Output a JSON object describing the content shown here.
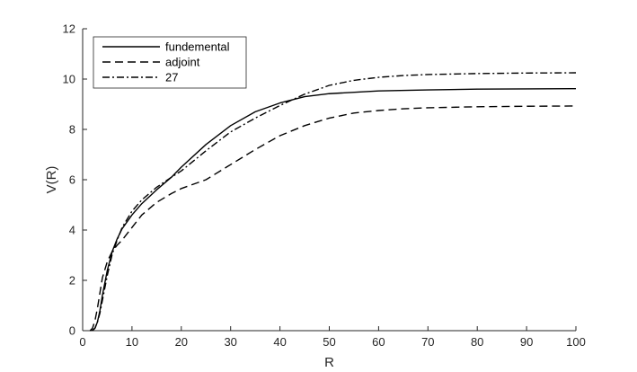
{
  "chart_data": {
    "type": "line",
    "title": "",
    "xlabel": "R",
    "ylabel": "V(R)",
    "xlim": [
      0,
      100
    ],
    "ylim": [
      0,
      12
    ],
    "xticks": [
      "0",
      "10",
      "20",
      "30",
      "40",
      "50",
      "60",
      "70",
      "80",
      "90",
      "100"
    ],
    "yticks": [
      "0",
      "2",
      "4",
      "6",
      "8",
      "10",
      "12"
    ],
    "grid": false,
    "legend_position": "top-left",
    "series": [
      {
        "name": "fundemental",
        "style": "solid",
        "color": "#000000",
        "x": [
          1.5,
          2,
          2.5,
          3,
          3.5,
          4,
          5,
          6,
          7,
          8,
          10,
          12,
          15,
          18,
          20,
          25,
          30,
          35,
          40,
          45,
          50,
          60,
          70,
          80,
          90,
          100
        ],
        "y": [
          0,
          0.02,
          0.1,
          0.35,
          0.8,
          1.4,
          2.4,
          3.15,
          3.65,
          4.05,
          4.6,
          5.05,
          5.6,
          6.1,
          6.5,
          7.4,
          8.15,
          8.7,
          9.05,
          9.3,
          9.42,
          9.53,
          9.57,
          9.6,
          9.61,
          9.62
        ]
      },
      {
        "name": "adjoint",
        "style": "dashed",
        "color": "#000000",
        "x": [
          1.5,
          2,
          2.5,
          3,
          3.5,
          4,
          5,
          6,
          7,
          8,
          10,
          12,
          15,
          18,
          20,
          25,
          30,
          35,
          40,
          45,
          50,
          55,
          60,
          65,
          70,
          80,
          90,
          100
        ],
        "y": [
          0,
          0.1,
          0.4,
          0.9,
          1.5,
          2.1,
          2.75,
          3.15,
          3.4,
          3.6,
          4.1,
          4.6,
          5.1,
          5.45,
          5.65,
          6.0,
          6.6,
          7.2,
          7.75,
          8.15,
          8.45,
          8.65,
          8.75,
          8.82,
          8.86,
          8.9,
          8.92,
          8.93
        ]
      },
      {
        "name": "27",
        "style": "dashdot",
        "color": "#000000",
        "x": [
          2,
          2.5,
          3,
          3.5,
          4,
          5,
          6,
          7,
          8,
          10,
          12,
          15,
          18,
          20,
          25,
          30,
          35,
          40,
          45,
          50,
          55,
          60,
          65,
          70,
          80,
          90,
          100
        ],
        "y": [
          0,
          0.1,
          0.35,
          0.7,
          1.2,
          2.2,
          3.05,
          3.6,
          4.1,
          4.75,
          5.2,
          5.7,
          6.1,
          6.35,
          7.15,
          7.9,
          8.45,
          8.95,
          9.4,
          9.75,
          9.95,
          10.07,
          10.14,
          10.18,
          10.22,
          10.24,
          10.25
        ]
      }
    ]
  }
}
